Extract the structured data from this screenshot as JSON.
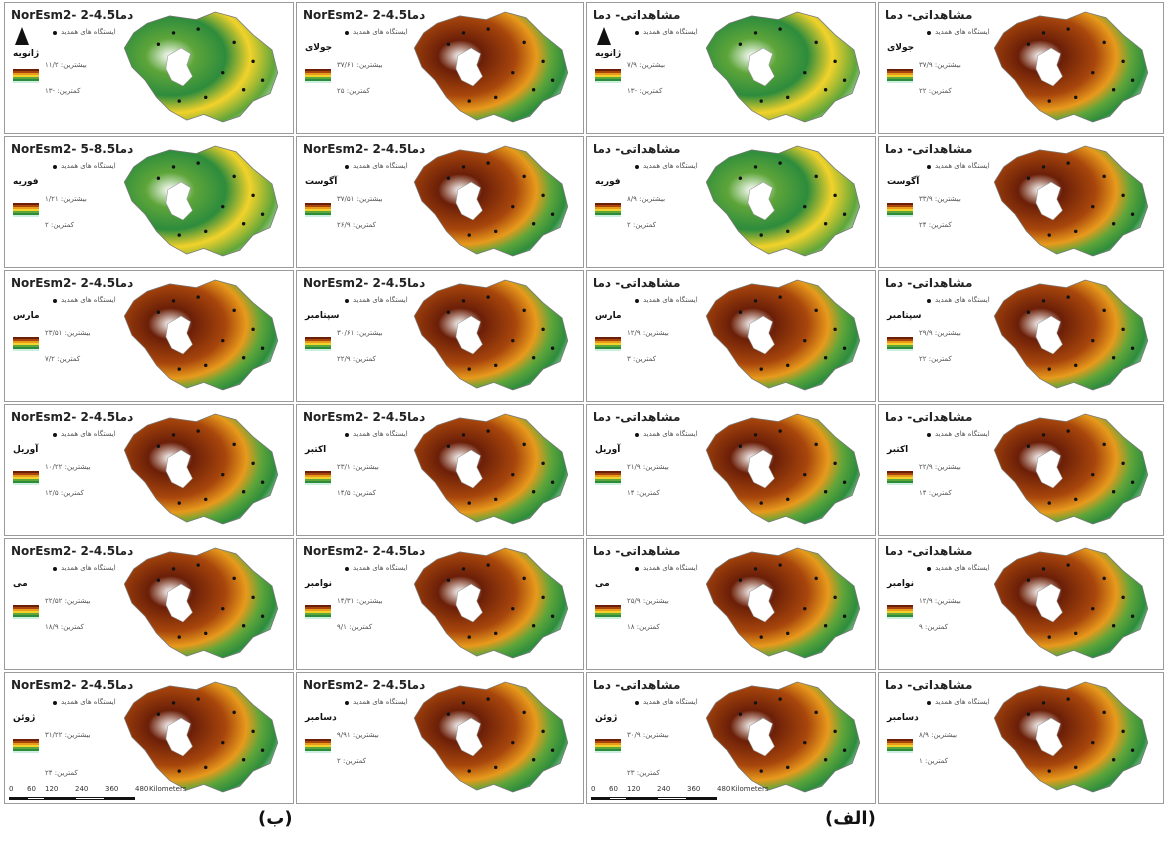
{
  "figure": {
    "caption_left": "(ب)",
    "caption_right": "(الف)",
    "station_legend": "ایستگاه های همدید",
    "max_prefix": "بیشترین:",
    "min_prefix": "کمترین:",
    "scale_ticks": [
      "0",
      "60",
      "120",
      "240",
      "360",
      "480"
    ],
    "scale_unit": "Kilometers",
    "colors": [
      "#ffffff",
      "#6b1f08",
      "#a8460c",
      "#e89a1c",
      "#f2d22b",
      "#5ea53a",
      "#2d8c3c",
      "#cdefe0"
    ]
  },
  "panels": [
    {
      "title": "NorEsm2- 2-4.5دما",
      "month": "ژانویه",
      "max": "۱۱/۲",
      "min": "-۱۳"
    },
    {
      "title": "NorEsm2- 2-4.5دما",
      "month": "جولای",
      "max": "۳۷/۶۱",
      "min": "۲۵"
    },
    {
      "title": "مشاهداتی- دما",
      "month": "ژانویه",
      "max": "۷/۹",
      "min": "-۱۳"
    },
    {
      "title": "مشاهداتی- دما",
      "month": "جولای",
      "max": "۳۷/۹",
      "min": "۲۲"
    },
    {
      "title": "NorEsm2- 5-8.5دما",
      "month": "فوریه",
      "max": "۱/۲۱",
      "min": "۲"
    },
    {
      "title": "NorEsm2- 2-4.5دما",
      "month": "آگوست",
      "max": "۳۷/۵۱",
      "min": "۲۶/۹"
    },
    {
      "title": "مشاهداتی- دما",
      "month": "فوریه",
      "max": "۸/۹",
      "min": "۲"
    },
    {
      "title": "مشاهداتی- دما",
      "month": "آگوست",
      "max": "۳۳/۹",
      "min": "۲۴"
    },
    {
      "title": "NorEsm2- 2-4.5دما",
      "month": "مارس",
      "max": "۲۳/۵۱",
      "min": "۷/۲"
    },
    {
      "title": "NorEsm2- 2-4.5دما",
      "month": "سپتامبر",
      "max": "۳۰/۶۱",
      "min": "۲۲/۹"
    },
    {
      "title": "مشاهداتی- دما",
      "month": "مارس",
      "max": "۱۲/۹",
      "min": "۳"
    },
    {
      "title": "مشاهداتی- دما",
      "month": "سپتامبر",
      "max": "۲۹/۹",
      "min": "۲۲"
    },
    {
      "title": "NorEsm2- 2-4.5دما",
      "month": "آوریل",
      "max": "۱۰/۲۲",
      "min": "۱۲/۵"
    },
    {
      "title": "NorEsm2- 2-4.5دما",
      "month": "اکتبر",
      "max": "۲۳/۱",
      "min": "۱۴/۵"
    },
    {
      "title": "مشاهداتی- دما",
      "month": "آوریل",
      "max": "۲۱/۹",
      "min": "۱۴"
    },
    {
      "title": "مشاهداتی- دما",
      "month": "اکتبر",
      "max": "۲۲/۹",
      "min": "۱۴"
    },
    {
      "title": "NorEsm2- 2-4.5دما",
      "month": "می",
      "max": "۲۲/۵۲",
      "min": "۱۸/۹"
    },
    {
      "title": "NorEsm2- 2-4.5دما",
      "month": "نوامبر",
      "max": "۱۴/۳۱",
      "min": "۹/۱"
    },
    {
      "title": "مشاهداتی- دما",
      "month": "می",
      "max": "۲۵/۹",
      "min": "۱۸"
    },
    {
      "title": "مشاهداتی- دما",
      "month": "نوامبر",
      "max": "۱۲/۹",
      "min": "۹"
    },
    {
      "title": "NorEsm2- 2-4.5دما",
      "month": "ژوئن",
      "max": "۳۱/۲۲",
      "min": "۲۴"
    },
    {
      "title": "NorEsm2- 2-4.5دما",
      "month": "دسامبر",
      "max": "۹/۹۱",
      "min": "۲"
    },
    {
      "title": "مشاهداتی- دما",
      "month": "ژوئن",
      "max": "۳۰/۹",
      "min": "۲۳"
    },
    {
      "title": "مشاهداتی- دما",
      "month": "دسامبر",
      "max": "۸/۹",
      "min": "۱"
    }
  ]
}
